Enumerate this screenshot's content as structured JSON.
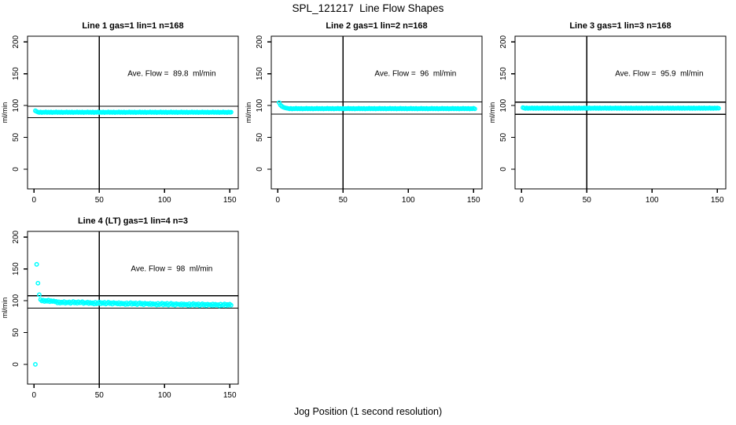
{
  "figure": {
    "title": "SPL_121217  Line Flow Shapes",
    "xlabel": "Jog Position (1 second resolution)",
    "background": "#ffffff",
    "axis_color": "#000000",
    "point_color": "#00ffff"
  },
  "chart_data": [
    {
      "type": "scatter",
      "title": "Line 1 gas=1 lin=1 n=168",
      "annotation": "Ave. Flow =  89.8  ml/min",
      "ave_flow": 89.8,
      "ylabel": "ml/min",
      "xticks": [
        0,
        50,
        100,
        150
      ],
      "yticks": [
        0,
        50,
        100,
        150,
        200
      ],
      "xlim": [
        -5,
        156.5
      ],
      "ylim": [
        -31,
        209
      ],
      "vline_x": 50,
      "hlines": [
        98.8,
        80.8
      ],
      "annotation_xy": [
        105.5,
        150
      ],
      "x_start": 1,
      "x_step": 1,
      "y": [
        91.8,
        90.6,
        89.7,
        89.1,
        89.9,
        89.0,
        89.6,
        89.2,
        90.0,
        89.1,
        89.7,
        89.1,
        89.9,
        89.0,
        89.6,
        89.2,
        90.0,
        89.1,
        89.7,
        89.1,
        89.9,
        89.0,
        89.6,
        89.2,
        90.0,
        89.1,
        89.7,
        89.1,
        89.9,
        89.0,
        89.6,
        89.2,
        90.0,
        89.1,
        89.7,
        89.1,
        89.9,
        89.0,
        89.6,
        89.2,
        90.0,
        89.1,
        89.7,
        89.1,
        89.9,
        89.0,
        89.6,
        89.2,
        90.0,
        89.1,
        89.7,
        89.1,
        89.9,
        89.0,
        89.6,
        89.2,
        90.0,
        89.1,
        89.7,
        89.1,
        89.9,
        89.0,
        89.6,
        89.2,
        90.0,
        89.1,
        89.7,
        89.1,
        89.9,
        89.0,
        89.6,
        89.2,
        90.0,
        89.1,
        89.7,
        89.1,
        89.9,
        89.0,
        89.6,
        89.2,
        90.0,
        89.1,
        89.7,
        89.1,
        89.9,
        89.0,
        89.6,
        89.2,
        90.0,
        89.1,
        89.7,
        89.1,
        89.9,
        89.0,
        89.6,
        89.2,
        90.0,
        89.1,
        89.7,
        89.1,
        89.9,
        89.0,
        89.6,
        89.2,
        90.0,
        89.1,
        89.7,
        89.1,
        89.9,
        89.0,
        89.6,
        89.2,
        90.0,
        89.1,
        89.7,
        89.1,
        89.9,
        89.0,
        89.6,
        89.2,
        90.0,
        89.1,
        89.7,
        89.1,
        89.9,
        89.0,
        89.6,
        89.2,
        90.0,
        89.1,
        89.7,
        89.1,
        89.9,
        89.0,
        89.6,
        89.2,
        90.0,
        89.1,
        89.7,
        89.1,
        89.9,
        89.0,
        89.6,
        89.2,
        90.0,
        89.1,
        89.5,
        89.0,
        89.8,
        89.2,
        89.6
      ]
    },
    {
      "type": "scatter",
      "title": "Line 2 gas=1 lin=2 n=168",
      "annotation": "Ave. Flow =  96  ml/min",
      "ave_flow": 96,
      "ylabel": "ml/min",
      "xticks": [
        0,
        50,
        100,
        150
      ],
      "yticks": [
        0,
        50,
        100,
        150,
        200
      ],
      "xlim": [
        -5,
        156.5
      ],
      "ylim": [
        -31,
        209
      ],
      "vline_x": 50,
      "hlines": [
        105.6,
        86.4
      ],
      "annotation_xy": [
        105.5,
        150
      ],
      "x_start": 1,
      "x_step": 1,
      "y": [
        104.6,
        100.8,
        98.9,
        97.6,
        96.8,
        96.2,
        95.8,
        95.4,
        94.8,
        95.6,
        94.7,
        95.3,
        94.9,
        95.7,
        94.8,
        95.4,
        94.8,
        95.6,
        94.7,
        95.3,
        94.9,
        95.7,
        94.8,
        95.4,
        94.8,
        95.6,
        94.7,
        95.3,
        94.9,
        95.7,
        94.8,
        95.4,
        94.8,
        95.6,
        94.7,
        95.3,
        94.9,
        95.7,
        94.8,
        95.4,
        94.8,
        95.6,
        94.7,
        95.3,
        94.9,
        95.7,
        94.8,
        95.4,
        94.8,
        95.6,
        94.7,
        95.3,
        94.9,
        95.7,
        94.8,
        95.4,
        94.8,
        95.6,
        94.7,
        95.3,
        94.9,
        95.7,
        94.8,
        95.4,
        94.8,
        95.6,
        94.7,
        95.3,
        94.9,
        95.7,
        94.8,
        95.4,
        94.8,
        95.6,
        94.7,
        95.3,
        94.9,
        95.7,
        94.8,
        95.4,
        94.8,
        95.6,
        94.7,
        95.3,
        94.9,
        95.7,
        94.8,
        95.4,
        94.8,
        95.6,
        94.7,
        95.3,
        94.9,
        95.7,
        94.8,
        95.4,
        94.8,
        95.6,
        94.7,
        95.3,
        94.9,
        95.7,
        94.8,
        95.4,
        94.8,
        95.6,
        94.7,
        95.3,
        94.9,
        95.7,
        94.8,
        95.4,
        94.8,
        95.6,
        94.7,
        95.3,
        94.9,
        95.7,
        94.8,
        95.4,
        94.8,
        95.6,
        94.7,
        95.3,
        94.9,
        95.7,
        94.8,
        95.4,
        94.8,
        95.6,
        94.7,
        95.3,
        94.9,
        95.7,
        94.8,
        95.4,
        94.8,
        95.6,
        94.7,
        95.3,
        94.9,
        95.7,
        94.8,
        95.4,
        94.8,
        95.6,
        94.7,
        95.3,
        94.9,
        95.7,
        94.8
      ]
    },
    {
      "type": "scatter",
      "title": "Line 3 gas=1 lin=3 n=168",
      "annotation": "Ave. Flow =  95.9  ml/min",
      "ave_flow": 95.9,
      "ylabel": "ml/min",
      "xticks": [
        0,
        50,
        100,
        150
      ],
      "yticks": [
        0,
        50,
        100,
        150,
        200
      ],
      "xlim": [
        -5,
        156.5
      ],
      "ylim": [
        -31,
        209
      ],
      "vline_x": 50,
      "hlines": [
        105.5,
        86.3
      ],
      "annotation_xy": [
        105.5,
        150
      ],
      "x_start": 1,
      "x_step": 1,
      "y": [
        96.8,
        96.1,
        95.5,
        96.3,
        95.4,
        96.0,
        95.6,
        96.4,
        95.5,
        96.1,
        95.5,
        96.3,
        95.4,
        96.0,
        95.6,
        96.4,
        95.5,
        96.1,
        95.5,
        96.3,
        95.4,
        96.0,
        95.6,
        96.4,
        95.5,
        96.1,
        95.5,
        96.3,
        95.4,
        96.0,
        95.6,
        96.4,
        95.5,
        96.1,
        95.5,
        96.3,
        95.4,
        96.0,
        95.6,
        96.4,
        95.5,
        96.1,
        95.5,
        96.3,
        95.4,
        96.0,
        95.6,
        96.4,
        95.5,
        96.1,
        95.5,
        96.3,
        95.4,
        96.0,
        95.6,
        96.4,
        95.5,
        96.1,
        95.5,
        96.3,
        95.4,
        96.0,
        95.6,
        96.4,
        95.5,
        96.1,
        95.5,
        96.3,
        95.4,
        96.0,
        95.6,
        96.4,
        95.5,
        96.1,
        95.5,
        96.3,
        95.4,
        96.0,
        95.6,
        96.4,
        95.5,
        96.1,
        95.5,
        96.3,
        95.4,
        96.0,
        95.6,
        96.4,
        95.5,
        96.1,
        95.5,
        96.3,
        95.4,
        96.0,
        95.6,
        96.4,
        95.5,
        96.1,
        95.5,
        96.3,
        95.4,
        96.0,
        95.6,
        96.4,
        95.5,
        96.1,
        95.5,
        96.3,
        95.4,
        96.0,
        95.6,
        96.4,
        95.5,
        96.1,
        95.5,
        96.3,
        95.4,
        96.0,
        95.6,
        96.4,
        95.5,
        96.1,
        95.5,
        96.3,
        95.4,
        96.0,
        95.6,
        96.4,
        95.5,
        96.1,
        95.5,
        96.3,
        95.4,
        96.0,
        95.6,
        96.4,
        95.5,
        96.1,
        95.5,
        96.3,
        95.4,
        96.0,
        95.6,
        96.4,
        95.5,
        96.0,
        95.5,
        96.2,
        95.6,
        96.1,
        95.7
      ]
    },
    {
      "type": "scatter",
      "title": "Line 4 (LT) gas=1 lin=4 n=3",
      "annotation": "Ave. Flow =  98  ml/min",
      "ave_flow": 98,
      "ylabel": "ml/min",
      "xticks": [
        0,
        50,
        100,
        150
      ],
      "yticks": [
        0,
        50,
        100,
        150,
        200
      ],
      "xlim": [
        -5,
        156.5
      ],
      "ylim": [
        -31,
        209
      ],
      "vline_x": 50,
      "hlines": [
        107.8,
        88.2
      ],
      "annotation_xy": [
        105.5,
        150
      ],
      "x_start": 1,
      "x_step": 1,
      "y": [
        0,
        157.2,
        127.6,
        109.4,
        101.8,
        99.6,
        101.0,
        98.9,
        100.4,
        99.2,
        100.9,
        98.6,
        100.1,
        98.9,
        99.8,
        98.4,
        98.9,
        96.6,
        98.4,
        96.2,
        97.9,
        96.8,
        98.6,
        96.1,
        97.6,
        96.9,
        98.2,
        95.9,
        97.3,
        98.8,
        96.4,
        97.7,
        96.0,
        98.3,
        96.7,
        97.2,
        98.5,
        95.8,
        97.0,
        96.5,
        97.8,
        95.6,
        97.2,
        95.9,
        96.8,
        94.9,
        97.5,
        95.3,
        96.4,
        97.9,
        95.1,
        96.9,
        95.7,
        97.4,
        94.8,
        96.2,
        97.7,
        95.4,
        96.6,
        94.6,
        97.1,
        95.9,
        96.3,
        95.0,
        96.9,
        94.7,
        96.4,
        95.2,
        95.9,
        94.1,
        96.7,
        94.5,
        95.6,
        97.0,
        94.3,
        96.1,
        94.9,
        96.6,
        93.9,
        95.4,
        96.8,
        94.6,
        95.8,
        93.8,
        96.2,
        95.1,
        95.5,
        94.2,
        96.0,
        93.9,
        95.6,
        94.4,
        95.1,
        93.3,
        95.9,
        93.7,
        94.8,
        96.2,
        93.5,
        95.3,
        94.1,
        95.8,
        93.1,
        94.6,
        96.0,
        93.8,
        95.0,
        93.0,
        95.4,
        94.3,
        94.7,
        93.4,
        95.3,
        93.2,
        94.9,
        93.7,
        94.4,
        92.6,
        95.2,
        93.0,
        94.1,
        95.5,
        92.8,
        94.6,
        93.4,
        95.1,
        92.4,
        93.9,
        95.3,
        93.1,
        94.3,
        92.3,
        94.7,
        93.6,
        94.0,
        92.7,
        94.8,
        92.7,
        94.4,
        93.2,
        93.9,
        92.1,
        94.7,
        92.5,
        93.6,
        95.0,
        92.3,
        94.1,
        92.9,
        94.6,
        93.0
      ]
    }
  ]
}
